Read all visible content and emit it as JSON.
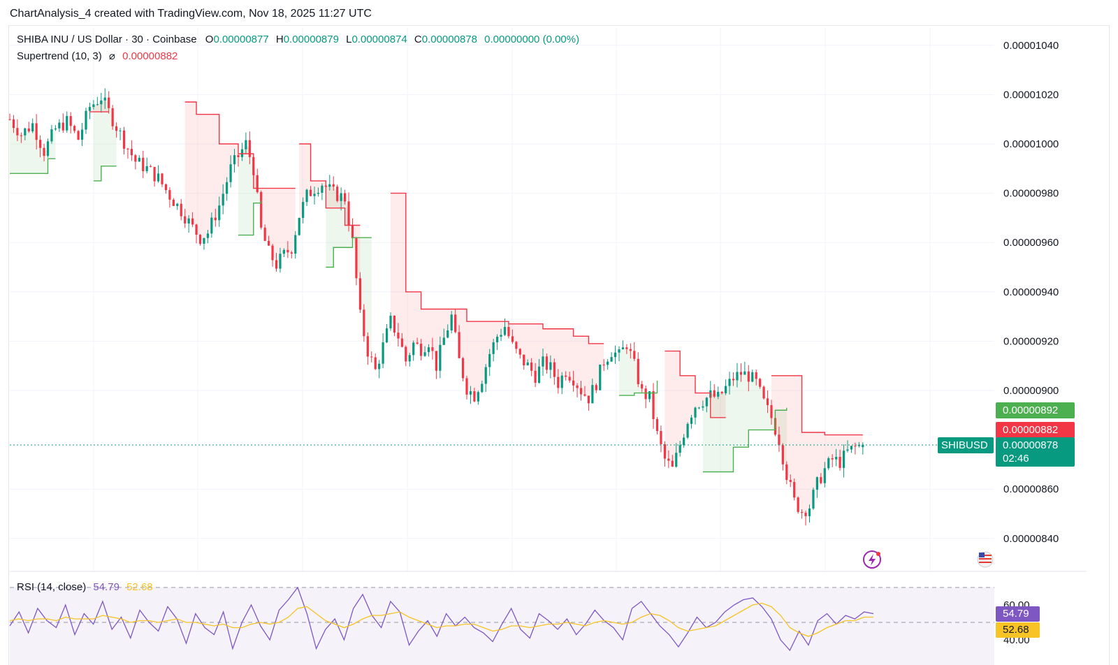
{
  "header": {
    "caption": "ChartAnalysis_4 created with TradingView.com, Nov 18, 2025 11:27 UTC"
  },
  "legend": {
    "symbol": "SHIBA INU / US Dollar · 30 · Coinbase",
    "o_label": "O",
    "o_value": "0.00000877",
    "h_label": "H",
    "h_value": "0.00000879",
    "l_label": "L",
    "l_value": "0.00000874",
    "c_label": "C",
    "c_value": "0.00000878",
    "change": "0.00000000 (0.00%)",
    "indicator": "Supertrend (10, 3)",
    "indicator_icon": "eye-off-icon",
    "indicator_value": "0.00000882"
  },
  "rsi_legend": {
    "label": "RSI (14, close)",
    "rsi_value": "54.79",
    "ma_value": "52.68"
  },
  "price_tags": {
    "upper_band": "0.00000892",
    "supertrend": "0.00000882",
    "last_label": "SHIBUSD",
    "last_price": "0.00000878",
    "countdown": "02:46",
    "rsi": "54.79",
    "rsi_ma": "52.68"
  },
  "colors": {
    "up": "#089981",
    "down": "#f23645",
    "supertrend_up": "#4caf50",
    "rsi_line": "#7e57c2",
    "rsi_ma": "#f7c325",
    "rsi_band": "#ede7f6"
  },
  "icons": {
    "flash": "flash-icon",
    "flag": "us-flag-icon"
  },
  "chart_data": [
    {
      "type": "candlestick",
      "title": "SHIBA INU / US Dollar · 30 · Coinbase",
      "ylim": [
        8.3e-06,
        1.05e-05
      ],
      "yticks": [
        "0.00001040",
        "0.00001020",
        "0.00001000",
        "0.00000980",
        "0.00000960",
        "0.00000940",
        "0.00000920",
        "0.00000900",
        "0.00000860",
        "0.00000840"
      ],
      "last_price": 8.78e-06,
      "close_path": [
        [
          0,
          1010
        ],
        [
          3,
          1004
        ],
        [
          6,
          1008
        ],
        [
          9,
          997
        ],
        [
          12,
          1006
        ],
        [
          15,
          1009
        ],
        [
          18,
          1002
        ],
        [
          21,
          1015
        ],
        [
          24,
          1019
        ],
        [
          27,
          1010
        ],
        [
          30,
          1001
        ],
        [
          33,
          993
        ],
        [
          36,
          990
        ],
        [
          39,
          986
        ],
        [
          42,
          979
        ],
        [
          45,
          973
        ],
        [
          48,
          966
        ],
        [
          50,
          962
        ],
        [
          52,
          964
        ],
        [
          55,
          975
        ],
        [
          58,
          990
        ],
        [
          60,
          995
        ],
        [
          62,
          1000
        ],
        [
          64,
          990
        ],
        [
          66,
          965
        ],
        [
          68,
          956
        ],
        [
          70,
          951
        ],
        [
          72,
          955
        ],
        [
          74,
          958
        ],
        [
          76,
          971
        ],
        [
          78,
          979
        ],
        [
          80,
          982
        ],
        [
          82,
          984
        ],
        [
          85,
          980
        ],
        [
          88,
          978
        ],
        [
          90,
          960
        ],
        [
          92,
          930
        ],
        [
          94,
          916
        ],
        [
          96,
          908
        ],
        [
          98,
          918
        ],
        [
          100,
          928
        ],
        [
          102,
          922
        ],
        [
          104,
          912
        ],
        [
          106,
          919
        ],
        [
          108,
          917
        ],
        [
          110,
          920
        ],
        [
          112,
          910
        ],
        [
          114,
          921
        ],
        [
          116,
          930
        ],
        [
          118,
          912
        ],
        [
          120,
          901
        ],
        [
          122,
          898
        ],
        [
          124,
          905
        ],
        [
          126,
          915
        ],
        [
          128,
          922
        ],
        [
          130,
          926
        ],
        [
          132,
          918
        ],
        [
          134,
          913
        ],
        [
          136,
          910
        ],
        [
          138,
          906
        ],
        [
          140,
          911
        ],
        [
          142,
          909
        ],
        [
          144,
          903
        ],
        [
          146,
          908
        ],
        [
          148,
          905
        ],
        [
          150,
          900
        ],
        [
          152,
          897
        ],
        [
          154,
          903
        ],
        [
          156,
          912
        ],
        [
          158,
          916
        ],
        [
          160,
          914
        ],
        [
          162,
          919
        ],
        [
          164,
          910
        ],
        [
          166,
          899
        ],
        [
          168,
          897
        ],
        [
          170,
          882
        ],
        [
          172,
          872
        ],
        [
          174,
          868
        ],
        [
          176,
          878
        ],
        [
          178,
          888
        ],
        [
          180,
          894
        ],
        [
          182,
          896
        ],
        [
          184,
          898
        ],
        [
          186,
          897
        ],
        [
          188,
          901
        ],
        [
          190,
          905
        ],
        [
          192,
          907
        ],
        [
          194,
          906
        ],
        [
          196,
          903
        ],
        [
          198,
          895
        ],
        [
          200,
          889
        ],
        [
          202,
          880
        ],
        [
          204,
          866
        ],
        [
          206,
          855
        ],
        [
          208,
          851
        ],
        [
          210,
          853
        ],
        [
          212,
          862
        ],
        [
          214,
          868
        ],
        [
          216,
          872
        ],
        [
          218,
          871
        ],
        [
          220,
          875
        ],
        [
          222,
          877
        ],
        [
          224,
          878
        ]
      ],
      "supertrend": {
        "value": 8.82e-06,
        "down_segments": [
          [
            [
              21,
              1013
            ],
            [
              26,
              1013
            ]
          ],
          [
            [
              46,
              1017
            ],
            [
              49,
              1012
            ],
            [
              55,
              1000
            ],
            [
              60,
              996
            ],
            [
              64,
              982
            ],
            [
              69,
              982
            ],
            [
              75,
              982
            ]
          ],
          [
            [
              76,
              1000
            ],
            [
              79,
              985
            ],
            [
              83,
              974
            ],
            [
              88,
              967
            ],
            [
              92,
              967
            ]
          ],
          [
            [
              100,
              980
            ],
            [
              104,
              940
            ],
            [
              108,
              933
            ],
            [
              115,
              933
            ],
            [
              120,
              928
            ],
            [
              125,
              928
            ],
            [
              131,
              927
            ],
            [
              136,
              927
            ],
            [
              140,
              925
            ],
            [
              145,
              925
            ],
            [
              148,
              922
            ],
            [
              152,
              919
            ],
            [
              156,
              919
            ]
          ],
          [
            [
              172,
              916
            ],
            [
              176,
              906
            ],
            [
              180,
              899
            ],
            [
              184,
              889
            ],
            [
              188,
              889
            ]
          ],
          [
            [
              200,
              906
            ],
            [
              205,
              906
            ],
            [
              208,
              883
            ],
            [
              214,
              882
            ],
            [
              224,
              882
            ]
          ]
        ],
        "up_segments": [
          [
            [
              0,
              988
            ],
            [
              8,
              988
            ],
            [
              10,
              994
            ],
            [
              12,
              994
            ]
          ],
          [
            [
              22,
              985
            ],
            [
              24,
              991
            ],
            [
              28,
              991
            ]
          ],
          [
            [
              60,
              963
            ],
            [
              64,
              976
            ],
            [
              66,
              977
            ]
          ],
          [
            [
              83,
              950
            ],
            [
              85,
              958
            ],
            [
              90,
              962
            ],
            [
              95,
              962
            ]
          ],
          [
            [
              160,
              898
            ],
            [
              164,
              899
            ],
            [
              170,
              904
            ]
          ],
          [
            [
              182,
              867
            ],
            [
              186,
              867
            ],
            [
              190,
              877
            ],
            [
              194,
              884
            ],
            [
              199,
              884
            ],
            [
              201,
              892
            ],
            [
              204,
              893
            ]
          ]
        ]
      }
    },
    {
      "type": "line",
      "title": "RSI (14, close)",
      "ylim": [
        30,
        70
      ],
      "yticks": [
        "60.00",
        "40.00"
      ],
      "bands": [
        30,
        70
      ],
      "series": [
        {
          "name": "RSI",
          "last": 54.79,
          "values": [
            48,
            56,
            44,
            58,
            51,
            47,
            60,
            43,
            55,
            49,
            62,
            46,
            53,
            41,
            57,
            50,
            45,
            59,
            52,
            38,
            55,
            47,
            43,
            56,
            35,
            50,
            60,
            48,
            40,
            57,
            63,
            70,
            55,
            35,
            46,
            52,
            40,
            58,
            66,
            54,
            47,
            62,
            56,
            37,
            45,
            51,
            42,
            55,
            48,
            53,
            47,
            44,
            39,
            49,
            58,
            46,
            41,
            55,
            51,
            46,
            52,
            43,
            49,
            57,
            51,
            47,
            40,
            58,
            62,
            55,
            48,
            43,
            36,
            44,
            53,
            47,
            50,
            56,
            60,
            63,
            64,
            59,
            52,
            40,
            34,
            45,
            37,
            51,
            55,
            49,
            54,
            52,
            56,
            55
          ]
        },
        {
          "name": "RSI-based MA",
          "last": 52.68,
          "values": [
            51,
            52,
            51,
            52,
            52,
            51,
            53,
            52,
            52,
            52,
            54,
            53,
            52,
            50,
            51,
            51,
            50,
            51,
            52,
            50,
            50,
            49,
            48,
            49,
            47,
            47,
            49,
            50,
            49,
            50,
            53,
            58,
            59,
            55,
            51,
            49,
            47,
            49,
            52,
            54,
            54,
            55,
            56,
            53,
            51,
            49,
            47,
            48,
            48,
            49,
            49,
            47,
            45,
            46,
            48,
            48,
            47,
            48,
            49,
            49,
            50,
            49,
            48,
            50,
            51,
            50,
            49,
            50,
            53,
            55,
            54,
            51,
            47,
            45,
            46,
            47,
            48,
            51,
            54,
            57,
            60,
            61,
            59,
            54,
            47,
            44,
            42,
            44,
            47,
            49,
            51,
            51,
            53,
            53
          ]
        }
      ]
    }
  ]
}
